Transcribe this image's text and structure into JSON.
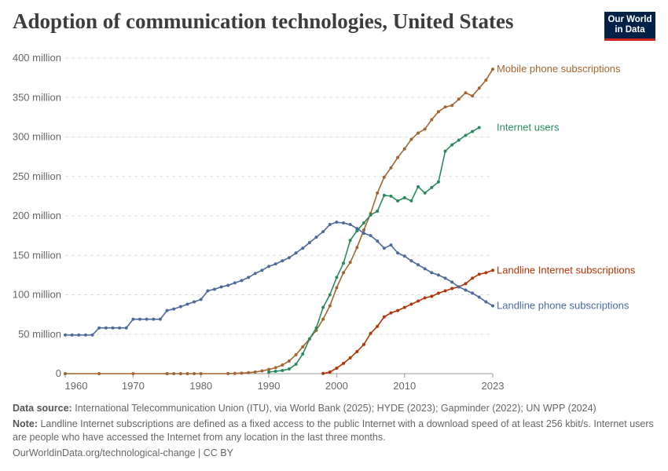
{
  "header": {
    "title": "Adoption of communication technologies, United States",
    "logo": [
      "Our World",
      "in Data"
    ]
  },
  "chart_data": {
    "type": "line",
    "xlim": [
      1960,
      2023
    ],
    "xticks": [
      1960,
      1970,
      1980,
      1990,
      2000,
      2010,
      2023
    ],
    "ylim": [
      0,
      400000000
    ],
    "yticks": [
      {
        "value": 0,
        "label": "0"
      },
      {
        "value": 50000000,
        "label": "50 million"
      },
      {
        "value": 100000000,
        "label": "100 million"
      },
      {
        "value": 150000000,
        "label": "150 million"
      },
      {
        "value": 200000000,
        "label": "200 million"
      },
      {
        "value": 250000000,
        "label": "250 million"
      },
      {
        "value": 300000000,
        "label": "300 million"
      },
      {
        "value": 350000000,
        "label": "350 million"
      },
      {
        "value": 400000000,
        "label": "400 million"
      }
    ],
    "grid": true,
    "series": [
      {
        "name": "Mobile phone subscriptions",
        "color": "#a2652f",
        "x": [
          1960,
          1965,
          1970,
          1975,
          1976,
          1977,
          1978,
          1979,
          1980,
          1984,
          1985,
          1986,
          1987,
          1988,
          1989,
          1990,
          1991,
          1992,
          1993,
          1994,
          1995,
          1996,
          1997,
          1998,
          1999,
          2000,
          2001,
          2002,
          2003,
          2004,
          2005,
          2006,
          2007,
          2008,
          2009,
          2010,
          2011,
          2012,
          2013,
          2014,
          2015,
          2016,
          2017,
          2018,
          2019,
          2020,
          2021,
          2022,
          2023
        ],
        "values": [
          0,
          0,
          0,
          0,
          0,
          0,
          0,
          0,
          0,
          90000,
          340000,
          680000,
          1200000,
          2100000,
          3500000,
          5300000,
          7600000,
          11000000,
          16000000,
          24000000,
          34000000,
          44000000,
          55000000,
          69000000,
          86000000,
          109000000,
          128000000,
          141000000,
          160000000,
          182000000,
          203000000,
          229000000,
          249000000,
          261000000,
          274000000,
          285000000,
          297000000,
          305000000,
          310000000,
          322000000,
          332000000,
          338000000,
          340000000,
          348000000,
          356000000,
          352000000,
          362000000,
          372000000,
          386000000
        ]
      },
      {
        "name": "Internet users",
        "color": "#2a8a5e",
        "x": [
          1990,
          1991,
          1992,
          1993,
          1994,
          1995,
          1996,
          1997,
          1998,
          1999,
          2000,
          2001,
          2002,
          2003,
          2004,
          2005,
          2006,
          2007,
          2008,
          2009,
          2010,
          2011,
          2012,
          2013,
          2014,
          2015,
          2016,
          2017,
          2018,
          2019,
          2020,
          2021
        ],
        "values": [
          2000000,
          3000000,
          4000000,
          6000000,
          12000000,
          25000000,
          44000000,
          58000000,
          84000000,
          100000000,
          122000000,
          140000000,
          169000000,
          181000000,
          191000000,
          201000000,
          206000000,
          226000000,
          225000000,
          219000000,
          223000000,
          219000000,
          237000000,
          229000000,
          236000000,
          243000000,
          282000000,
          290000000,
          296000000,
          302000000,
          307000000,
          312000000
        ]
      },
      {
        "name": "Landline Internet subscriptions",
        "color": "#b13507",
        "x": [
          1998,
          1999,
          2000,
          2001,
          2002,
          2003,
          2004,
          2005,
          2006,
          2007,
          2008,
          2009,
          2010,
          2011,
          2012,
          2013,
          2014,
          2015,
          2016,
          2017,
          2018,
          2019,
          2020,
          2021,
          2022,
          2023
        ],
        "values": [
          300000,
          2000000,
          7000000,
          13000000,
          20000000,
          28000000,
          37000000,
          51000000,
          60000000,
          72000000,
          77000000,
          80000000,
          84000000,
          88000000,
          92000000,
          96000000,
          98000000,
          102000000,
          105000000,
          108000000,
          110000000,
          114000000,
          121000000,
          126000000,
          128000000,
          131000000
        ]
      },
      {
        "name": "Landline phone subscriptions",
        "color": "#4c6a9c",
        "x": [
          1960,
          1961,
          1962,
          1963,
          1964,
          1965,
          1966,
          1967,
          1968,
          1969,
          1970,
          1971,
          1972,
          1973,
          1974,
          1975,
          1976,
          1977,
          1978,
          1979,
          1980,
          1981,
          1982,
          1983,
          1984,
          1985,
          1986,
          1987,
          1988,
          1989,
          1990,
          1991,
          1992,
          1993,
          1994,
          1995,
          1996,
          1997,
          1998,
          1999,
          2000,
          2001,
          2002,
          2003,
          2004,
          2005,
          2006,
          2007,
          2008,
          2009,
          2010,
          2011,
          2012,
          2013,
          2014,
          2015,
          2016,
          2017,
          2018,
          2019,
          2020,
          2021,
          2022,
          2023
        ],
        "values": [
          49000000,
          49000000,
          49000000,
          49000000,
          49000000,
          58000000,
          58000000,
          58000000,
          58000000,
          58000000,
          69000000,
          69000000,
          69000000,
          69000000,
          69000000,
          80000000,
          82000000,
          85000000,
          88000000,
          91000000,
          94000000,
          105000000,
          107000000,
          110000000,
          112000000,
          115000000,
          118000000,
          122000000,
          127000000,
          131000000,
          136000000,
          139000000,
          143000000,
          147000000,
          153000000,
          159000000,
          166000000,
          173000000,
          180000000,
          189000000,
          192000000,
          191000000,
          189000000,
          184000000,
          178000000,
          175000000,
          168000000,
          159000000,
          163000000,
          153000000,
          149000000,
          143000000,
          138000000,
          133000000,
          128000000,
          125000000,
          121000000,
          116000000,
          110000000,
          106000000,
          102000000,
          97000000,
          91000000,
          86000000
        ]
      }
    ]
  },
  "footer": {
    "source_label": "Data source:",
    "source": "International Telecommunication Union (ITU), via World Bank (2025); HYDE (2023); Gapminder (2022); UN WPP (2024)",
    "note_label": "Note:",
    "note": "Landline Internet subscriptions are defined as a fixed access to the public Internet with a download speed of at least 256 kbit/s. Internet users are people who have accessed the Internet from any location in the last three months.",
    "url": "OurWorldinData.org/technological-change | CC BY"
  }
}
